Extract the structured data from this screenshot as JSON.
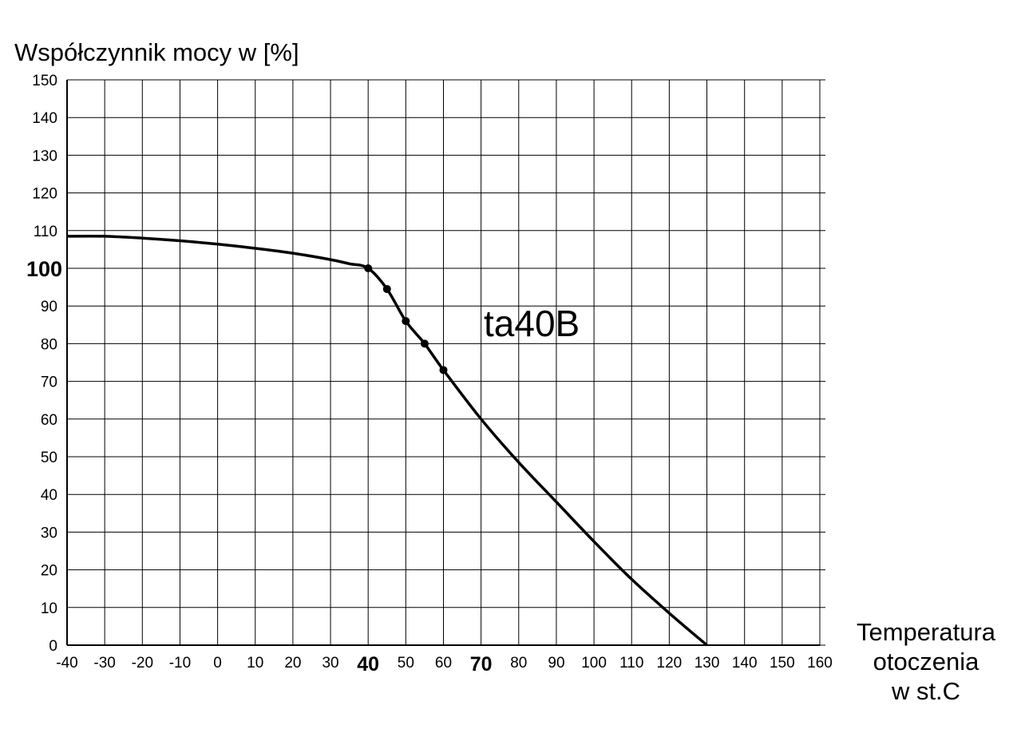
{
  "chart_data": {
    "type": "line",
    "title": "",
    "ylabel": "Współczynnik mocy  w  [%]",
    "xlabel": [
      "Temperatura",
      "otoczenia",
      "w st.C"
    ],
    "annotation": "ta40B",
    "xlim": [
      -40,
      160
    ],
    "ylim": [
      0,
      150
    ],
    "x_ticks": [
      -40,
      -30,
      -20,
      -10,
      0,
      10,
      20,
      30,
      40,
      50,
      60,
      70,
      80,
      90,
      100,
      110,
      120,
      130,
      140,
      150,
      160
    ],
    "x_tick_labels": [
      "-40",
      "-30",
      "-20",
      "-10",
      "0",
      "10",
      "20",
      "30",
      "40",
      "50",
      "60",
      "70",
      "80",
      "90",
      "100",
      "110",
      "120",
      "130",
      "140",
      "150",
      "160"
    ],
    "x_tick_bold": [
      "40",
      "70"
    ],
    "y_ticks": [
      0,
      10,
      20,
      30,
      40,
      50,
      60,
      70,
      80,
      90,
      100,
      110,
      120,
      130,
      140,
      150
    ],
    "y_tick_labels": [
      "0",
      "10",
      "20",
      "30",
      "40",
      "50",
      "60",
      "70",
      "80",
      "90",
      "100",
      "110",
      "120",
      "130",
      "140",
      "150"
    ],
    "y_tick_bold": [
      "100"
    ],
    "grid": true,
    "line_color": "#000000",
    "series": [
      {
        "x": [
          -40,
          -30,
          -20,
          -10,
          0,
          10,
          20,
          30,
          35,
          40,
          45,
          50,
          55,
          60,
          70,
          80,
          90,
          100,
          110,
          120,
          130
        ],
        "y": [
          108.5,
          108.5,
          108,
          107.3,
          106.4,
          105.3,
          104,
          102.3,
          101.2,
          100,
          94.5,
          86,
          80,
          73,
          60,
          48.5,
          38,
          27.5,
          17.5,
          8.5,
          0
        ]
      }
    ],
    "markers": {
      "x": [
        40,
        45,
        50,
        55,
        60
      ],
      "y": [
        100,
        94.5,
        86,
        80,
        73
      ]
    }
  }
}
